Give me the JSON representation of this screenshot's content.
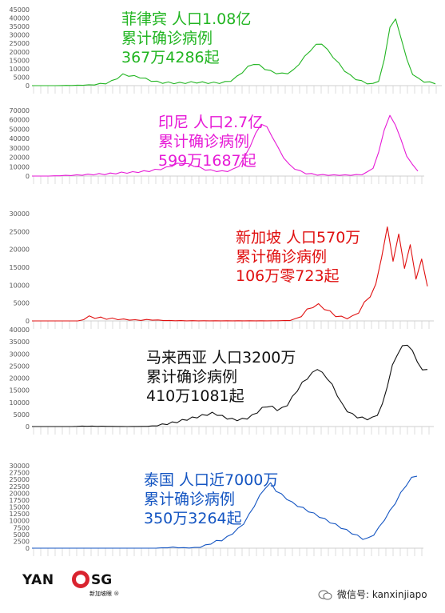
{
  "chart_data": [
    {
      "type": "line",
      "color": "#22b522",
      "ylim": [
        0,
        45000
      ],
      "yticks": [
        0,
        5000,
        10000,
        15000,
        20000,
        25000,
        30000,
        35000,
        40000,
        45000
      ],
      "annotation": [
        "菲律宾 人口1.08亿",
        "累计确诊病例",
        "367万4286起"
      ],
      "series": [
        {
          "values": [
            0,
            0,
            0,
            0,
            0,
            50,
            100,
            150,
            200,
            300,
            400,
            600,
            1000,
            1500,
            2500,
            4500,
            6500,
            6000,
            5500,
            5000,
            4000,
            3000,
            2200,
            1800,
            1700,
            1600,
            1500,
            1700,
            1900,
            2000,
            1800,
            1700,
            1600,
            1700,
            2000,
            3000,
            5000,
            8000,
            11000,
            13000,
            12000,
            10000,
            8500,
            7500,
            7000,
            7500,
            9000,
            13000,
            17000,
            21000,
            24000,
            25000,
            21000,
            17000,
            13000,
            9000,
            6000,
            4000,
            2500,
            1500,
            1000,
            3000,
            15000,
            35000,
            39000,
            28000,
            15000,
            7000,
            4000,
            2500,
            1800,
            1500
          ]
        }
      ]
    },
    {
      "type": "line",
      "color": "#e61ad6",
      "ylim": [
        0,
        70000
      ],
      "yticks": [
        0,
        10000,
        20000,
        30000,
        40000,
        50000,
        60000,
        70000
      ],
      "annotation": [
        "印尼  人口2.7亿",
        "累计确诊病例",
        "599万1687起"
      ],
      "series": [
        {
          "values": [
            0,
            0,
            0,
            0,
            200,
            400,
            600,
            800,
            1000,
            1200,
            1500,
            1800,
            2000,
            2200,
            2500,
            3000,
            3500,
            3700,
            4000,
            4500,
            5000,
            5500,
            6500,
            7500,
            9000,
            11000,
            13000,
            14000,
            12500,
            11000,
            9000,
            7000,
            6000,
            5500,
            5000,
            5500,
            7000,
            11000,
            20000,
            32000,
            45000,
            56000,
            52000,
            42000,
            30000,
            20000,
            12000,
            8000,
            5000,
            3000,
            2000,
            1500,
            1200,
            1000,
            1000,
            1000,
            1000,
            1000,
            1200,
            2000,
            4000,
            9000,
            25000,
            50000,
            64000,
            55000,
            38000,
            22000,
            12000,
            6000
          ]
        }
      ]
    },
    {
      "type": "line",
      "color": "#e01010",
      "ylim": [
        0,
        30000
      ],
      "yticks": [
        0,
        5000,
        10000,
        15000,
        20000,
        25000,
        30000
      ],
      "annotation": [
        "新加坡  人口570万",
        "累计确诊病例",
        "106万零723起"
      ],
      "series": [
        {
          "values": [
            0,
            0,
            0,
            0,
            0,
            0,
            0,
            0,
            0,
            500,
            1100,
            1000,
            800,
            700,
            600,
            500,
            400,
            300,
            250,
            200,
            300,
            300,
            200,
            150,
            100,
            80,
            60,
            50,
            50,
            40,
            40,
            30,
            30,
            30,
            30,
            30,
            30,
            30,
            30,
            30,
            30,
            30,
            40,
            60,
            80,
            150,
            500,
            1500,
            3000,
            4000,
            4500,
            3500,
            2500,
            1500,
            1000,
            900,
            1200,
            2500,
            5000,
            7000,
            10000,
            18000,
            26000,
            17000,
            24000,
            15000,
            21000,
            12000,
            17000,
            10000
          ]
        }
      ]
    },
    {
      "type": "line",
      "color": "#111111",
      "ylim": [
        0,
        40000
      ],
      "yticks": [
        0,
        5000,
        10000,
        15000,
        20000,
        25000,
        30000,
        35000,
        40000
      ],
      "annotation": [
        "马来西亚  人口3200万",
        "累计确诊病例",
        "410万1081起"
      ],
      "series": [
        {
          "values": [
            0,
            0,
            0,
            0,
            0,
            0,
            0,
            0,
            0,
            100,
            150,
            150,
            150,
            120,
            100,
            80,
            60,
            50,
            30,
            20,
            20,
            30,
            50,
            100,
            200,
            400,
            800,
            1200,
            1500,
            2000,
            2500,
            3000,
            3500,
            4000,
            4500,
            5000,
            5500,
            5000,
            4200,
            3500,
            3000,
            2800,
            3000,
            3500,
            4500,
            6000,
            7500,
            8500,
            8000,
            7000,
            7500,
            9000,
            12000,
            15000,
            18000,
            20000,
            22000,
            24000,
            22000,
            20000,
            17000,
            13000,
            9000,
            6500,
            5000,
            4000,
            3500,
            3200,
            3500,
            5000,
            9000,
            17000,
            25000,
            30000,
            33000,
            34000,
            31000,
            27000,
            23000,
            24000
          ]
        }
      ]
    },
    {
      "type": "line",
      "color": "#1455c2",
      "ylim": [
        0,
        30000
      ],
      "yticks": [
        0,
        2500,
        5000,
        7500,
        10000,
        12500,
        15000,
        17500,
        20000,
        22500,
        25000,
        27500,
        30000
      ],
      "annotation": [
        "泰国  人口近7000万",
        "累计确诊病例",
        "350万3264起"
      ],
      "series": [
        {
          "values": [
            0,
            0,
            0,
            0,
            0,
            0,
            0,
            0,
            0,
            0,
            0,
            0,
            0,
            0,
            0,
            0,
            0,
            0,
            0,
            0,
            0,
            0,
            0,
            50,
            100,
            200,
            300,
            200,
            150,
            100,
            200,
            400,
            900,
            1800,
            2500,
            3000,
            4000,
            5500,
            7000,
            9000,
            12000,
            15500,
            19000,
            22000,
            23500,
            21000,
            19500,
            18000,
            16500,
            15500,
            14500,
            13500,
            12500,
            11500,
            10500,
            9500,
            8500,
            7500,
            6500,
            5500,
            4500,
            3500,
            3500,
            5000,
            7500,
            10500,
            13500,
            16500,
            20000,
            23000,
            25500,
            26500
          ]
        }
      ]
    }
  ],
  "watermark": {
    "logo_left": "YAN",
    "logo_right": "SG",
    "logo_sub": "新加坡眼 ®"
  },
  "footer": {
    "wechat": "微信号: kanxinjiapo"
  }
}
